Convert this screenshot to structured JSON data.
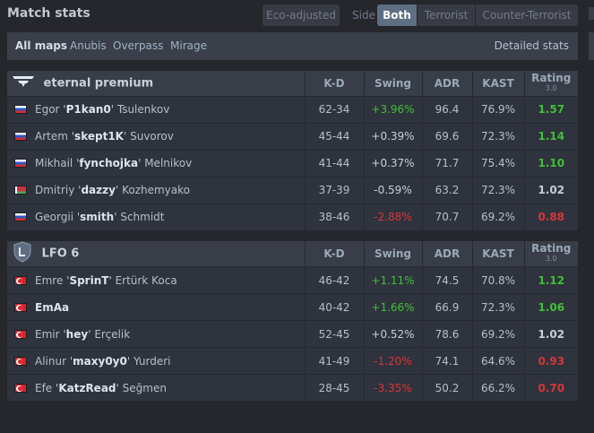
{
  "header": {
    "title": "Match stats",
    "eco_adjusted": "Eco-adjusted",
    "side_label": "Side",
    "side_options": [
      "Both",
      "Terrorist",
      "Counter-Terrorist"
    ],
    "side_selected": "Both"
  },
  "filters": {
    "maps": [
      "All maps",
      "Anubis",
      "Overpass",
      "Mirage"
    ],
    "selected_map": "All maps",
    "detailed_stats": "Detailed stats"
  },
  "columns": {
    "kd": "K-D",
    "swing": "Swing",
    "adr": "ADR",
    "kast": "KAST",
    "rating": "Rating",
    "rating_version": "3.0"
  },
  "colors": {
    "positive": "#3ec136",
    "negative": "#d5373a",
    "neutral": "#c9cfd6"
  },
  "teams": [
    {
      "name": "eternal premium",
      "logo": "eternal-premium-logo",
      "players": [
        {
          "flag": "ru",
          "first": "Egor",
          "nick": "P1kan0",
          "last": "Tsulenkov",
          "kd": "62-34",
          "swing": "+3.96%",
          "adr": "96.4",
          "kast": "76.9%",
          "rating": "1.57",
          "swing_tone": "pos",
          "rating_tone": "pos"
        },
        {
          "flag": "ru",
          "first": "Artem",
          "nick": "skept1K",
          "last": "Suvorov",
          "kd": "45-44",
          "swing": "+0.39%",
          "adr": "69.6",
          "kast": "72.3%",
          "rating": "1.14",
          "swing_tone": "neu",
          "rating_tone": "pos"
        },
        {
          "flag": "ru",
          "first": "Mikhail",
          "nick": "fynchojka",
          "last": "Melnikov",
          "kd": "41-44",
          "swing": "+0.37%",
          "adr": "71.7",
          "kast": "75.4%",
          "rating": "1.10",
          "swing_tone": "neu",
          "rating_tone": "pos"
        },
        {
          "flag": "by",
          "first": "Dmitriy",
          "nick": "dazzy",
          "last": "Kozhemyako",
          "kd": "37-39",
          "swing": "-0.59%",
          "adr": "63.2",
          "kast": "72.3%",
          "rating": "1.02",
          "swing_tone": "neu",
          "rating_tone": "neu"
        },
        {
          "flag": "ru",
          "first": "Georgii",
          "nick": "smith",
          "last": "Schmidt",
          "kd": "38-46",
          "swing": "-2.88%",
          "adr": "70.7",
          "kast": "69.2%",
          "rating": "0.88",
          "swing_tone": "neg",
          "rating_tone": "neg"
        }
      ]
    },
    {
      "name": "LFO 6",
      "logo": "lfo-shield-logo",
      "players": [
        {
          "flag": "tr",
          "first": "Emre",
          "nick": "SprinT",
          "last": "Ertürk Koca",
          "kd": "46-42",
          "swing": "+1.11%",
          "adr": "74.5",
          "kast": "70.8%",
          "rating": "1.12",
          "swing_tone": "pos",
          "rating_tone": "pos"
        },
        {
          "flag": "tr",
          "first": "",
          "nick": "EmAa",
          "last": "",
          "kd": "40-42",
          "swing": "+1.66%",
          "adr": "66.9",
          "kast": "72.3%",
          "rating": "1.06",
          "swing_tone": "pos",
          "rating_tone": "pos"
        },
        {
          "flag": "tr",
          "first": "Emir",
          "nick": "hey",
          "last": "Erçelik",
          "kd": "52-45",
          "swing": "+0.52%",
          "adr": "78.6",
          "kast": "69.2%",
          "rating": "1.02",
          "swing_tone": "neu",
          "rating_tone": "neu"
        },
        {
          "flag": "tr",
          "first": "Alinur",
          "nick": "maxy0y0",
          "last": "Yurderi",
          "kd": "41-49",
          "swing": "-1.20%",
          "adr": "74.1",
          "kast": "64.6%",
          "rating": "0.93",
          "swing_tone": "neg",
          "rating_tone": "neg"
        },
        {
          "flag": "tr",
          "first": "Efe",
          "nick": "KatzRead",
          "last": "Seğmen",
          "kd": "28-45",
          "swing": "-3.35%",
          "adr": "50.2",
          "kast": "66.2%",
          "rating": "0.70",
          "swing_tone": "neg",
          "rating_tone": "neg"
        }
      ]
    }
  ]
}
